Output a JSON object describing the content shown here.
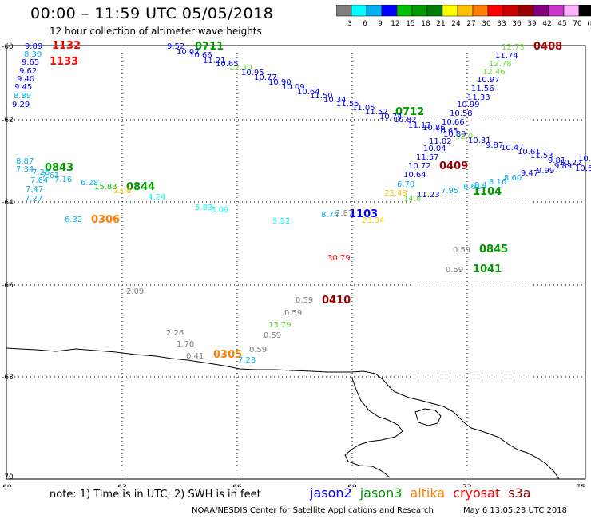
{
  "header": {
    "title": "00:00 – 11:59 UTC 05/05/2018",
    "subtitle": "12 hour collection of altimeter wave heights"
  },
  "colorbar": {
    "labels": [
      "3",
      "6",
      "9",
      "12",
      "15",
      "18",
      "21",
      "24",
      "27",
      "30",
      "33",
      "36",
      "39",
      "42",
      "45",
      "70",
      "(ft)"
    ],
    "colors": [
      "#7f7f7f",
      "#00ffff",
      "#00b0f0",
      "#0000ff",
      "#00c000",
      "#009900",
      "#007a00",
      "#ffff00",
      "#ffc000",
      "#ff8000",
      "#ff0000",
      "#cc0000",
      "#990000",
      "#800080",
      "#cc33cc",
      "#ffb0ff",
      "#000000"
    ]
  },
  "axes": {
    "lat_labels": [
      "-60",
      "-62",
      "-64",
      "-66",
      "-68",
      "-70"
    ],
    "lon_labels": [
      "60",
      "63",
      "66",
      "69",
      "72",
      "75"
    ]
  },
  "map_data": {
    "time_labels": [
      {
        "text": "1132",
        "c": "#ff0000"
      },
      {
        "text": "1133",
        "c": "#ff0000"
      },
      {
        "text": "0711",
        "c": "#009900"
      },
      {
        "text": "0408",
        "c": "#990000"
      },
      {
        "text": "0712",
        "c": "#009900"
      },
      {
        "text": "0409",
        "c": "#990000"
      },
      {
        "text": "0843",
        "c": "#009900"
      },
      {
        "text": "0844",
        "c": "#009900"
      },
      {
        "text": "0306",
        "c": "#ff8000"
      },
      {
        "text": "1104",
        "c": "#009900"
      },
      {
        "text": "1103",
        "c": "#0000ff"
      },
      {
        "text": "0845",
        "c": "#009900"
      },
      {
        "text": "1041",
        "c": "#009900"
      },
      {
        "text": "0410",
        "c": "#990000"
      },
      {
        "text": "0305",
        "c": "#ff8000"
      }
    ],
    "wave_values": [
      {
        "v": "9.89",
        "c": "#0000ff"
      },
      {
        "v": "8.30",
        "c": "#00b0f0"
      },
      {
        "v": "9.65",
        "c": "#0000ff"
      },
      {
        "v": "9.62",
        "c": "#0000ff"
      },
      {
        "v": "9.40",
        "c": "#0000ff"
      },
      {
        "v": "9.45",
        "c": "#0000ff"
      },
      {
        "v": "8.89",
        "c": "#00b0f0"
      },
      {
        "v": "9.29",
        "c": "#0000ff"
      },
      {
        "v": "9.52",
        "c": "#0000ff"
      },
      {
        "v": "10.02",
        "c": "#0000ff"
      },
      {
        "v": "10.66",
        "c": "#0000ff"
      },
      {
        "v": "11.21",
        "c": "#0000ff"
      },
      {
        "v": "10.65",
        "c": "#0000ff"
      },
      {
        "v": "12.30",
        "c": "#66dd33"
      },
      {
        "v": "10.95",
        "c": "#0000ff"
      },
      {
        "v": "10.77",
        "c": "#0000ff"
      },
      {
        "v": "10.90",
        "c": "#0000ff"
      },
      {
        "v": "10.09",
        "c": "#0000ff"
      },
      {
        "v": "10.64",
        "c": "#0000ff"
      },
      {
        "v": "11.50",
        "c": "#0000ff"
      },
      {
        "v": "10.34",
        "c": "#0000ff"
      },
      {
        "v": "11.55",
        "c": "#0000ff"
      },
      {
        "v": "11.05",
        "c": "#0000ff"
      },
      {
        "v": "11.52",
        "c": "#0000ff"
      },
      {
        "v": "10.74",
        "c": "#0000ff"
      },
      {
        "v": "10.82",
        "c": "#0000ff"
      },
      {
        "v": "11.13",
        "c": "#0000ff"
      },
      {
        "v": "10.86",
        "c": "#0000ff"
      },
      {
        "v": "10.65",
        "c": "#0000ff"
      },
      {
        "v": "10.89",
        "c": "#0000ff"
      },
      {
        "v": "11.02",
        "c": "#0000ff"
      },
      {
        "v": "12.0",
        "c": "#66dd33"
      },
      {
        "v": "10.04",
        "c": "#0000ff"
      },
      {
        "v": "11.57",
        "c": "#0000ff"
      },
      {
        "v": "10.72",
        "c": "#0000ff"
      },
      {
        "v": "10.64",
        "c": "#0000ff"
      },
      {
        "v": "6.70",
        "c": "#00b0f0"
      },
      {
        "v": "11.23",
        "c": "#0000ff"
      },
      {
        "v": "12.73",
        "c": "#66dd33"
      },
      {
        "v": "11.74",
        "c": "#0000ff"
      },
      {
        "v": "12.78",
        "c": "#66dd33"
      },
      {
        "v": "12.46",
        "c": "#66dd33"
      },
      {
        "v": "10.97",
        "c": "#0000ff"
      },
      {
        "v": "11.56",
        "c": "#0000ff"
      },
      {
        "v": "11.33",
        "c": "#0000ff"
      },
      {
        "v": "10.99",
        "c": "#0000ff"
      },
      {
        "v": "10.58",
        "c": "#0000ff"
      },
      {
        "v": "10.66",
        "c": "#0000ff"
      },
      {
        "v": "10.31",
        "c": "#0000ff"
      },
      {
        "v": "9.87",
        "c": "#0000ff"
      },
      {
        "v": "10.47",
        "c": "#0000ff"
      },
      {
        "v": "10.61",
        "c": "#0000ff"
      },
      {
        "v": "11.53",
        "c": "#0000ff"
      },
      {
        "v": "9.81",
        "c": "#0000ff"
      },
      {
        "v": "10.22",
        "c": "#0000ff"
      },
      {
        "v": "9.89",
        "c": "#0000ff"
      },
      {
        "v": "10.",
        "c": "#0000ff"
      },
      {
        "v": "10.6",
        "c": "#0000ff"
      },
      {
        "v": "9.99",
        "c": "#0000ff"
      },
      {
        "v": "9.47",
        "c": "#0000ff"
      },
      {
        "v": "8.60",
        "c": "#00b0f0"
      },
      {
        "v": "8.16",
        "c": "#00b0f0"
      },
      {
        "v": "8.4",
        "c": "#00b0f0"
      },
      {
        "v": "8.61",
        "c": "#00b0f0"
      },
      {
        "v": "7.95",
        "c": "#00b0f0"
      },
      {
        "v": "8.87",
        "c": "#00b0f0"
      },
      {
        "v": "7.34",
        "c": "#00b0f0"
      },
      {
        "v": "7.28",
        "c": "#00b0f0"
      },
      {
        "v": "7.61",
        "c": "#00b0f0"
      },
      {
        "v": "7.64",
        "c": "#00b0f0"
      },
      {
        "v": "7.16",
        "c": "#00b0f0"
      },
      {
        "v": "6.28",
        "c": "#00b0f0"
      },
      {
        "v": "15.83",
        "c": "#00c000"
      },
      {
        "v": "23.8",
        "c": "#ffc000"
      },
      {
        "v": "7.47",
        "c": "#00b0f0"
      },
      {
        "v": "7.27",
        "c": "#00b0f0"
      },
      {
        "v": "4.24",
        "c": "#00ffff"
      },
      {
        "v": "6.32",
        "c": "#00b0f0"
      },
      {
        "v": "5.83",
        "c": "#00ffff"
      },
      {
        "v": "5.09",
        "c": "#00ffff"
      },
      {
        "v": "5.52",
        "c": "#00ffff"
      },
      {
        "v": "8.74",
        "c": "#00b0f0"
      },
      {
        "v": "2.87",
        "c": "#7f7f7f"
      },
      {
        "v": "23.48",
        "c": "#ffc000"
      },
      {
        "v": "14.8",
        "c": "#66dd33"
      },
      {
        "v": "23.34",
        "c": "#ffc000"
      },
      {
        "v": "30.79",
        "c": "#ff0000"
      },
      {
        "v": "0.59",
        "c": "#7f7f7f"
      },
      {
        "v": "0.59",
        "c": "#7f7f7f"
      },
      {
        "v": "2.09",
        "c": "#7f7f7f"
      },
      {
        "v": "0.59",
        "c": "#7f7f7f"
      },
      {
        "v": "0.59",
        "c": "#7f7f7f"
      },
      {
        "v": "13.79",
        "c": "#66dd33"
      },
      {
        "v": "0.59",
        "c": "#7f7f7f"
      },
      {
        "v": "2.26",
        "c": "#7f7f7f"
      },
      {
        "v": "1.70",
        "c": "#7f7f7f"
      },
      {
        "v": "0.41",
        "c": "#7f7f7f"
      },
      {
        "v": "0.59",
        "c": "#7f7f7f"
      },
      {
        "v": "7.23",
        "c": "#00b0f0"
      }
    ]
  },
  "footer": {
    "note": "note: 1) Time is in UTC; 2) SWH is in feet",
    "legend": [
      {
        "name": "jason2",
        "c": "#0000ff"
      },
      {
        "name": "jason3",
        "c": "#009900"
      },
      {
        "name": "altika",
        "c": "#ff8000"
      },
      {
        "name": "cryosat",
        "c": "#ff0000"
      },
      {
        "name": "s3a",
        "c": "#990000"
      }
    ],
    "credit": "NOAA/NESDIS Center for Satellite Applications and Research",
    "timestamp": "May  6 13:05:23 UTC 2018"
  }
}
